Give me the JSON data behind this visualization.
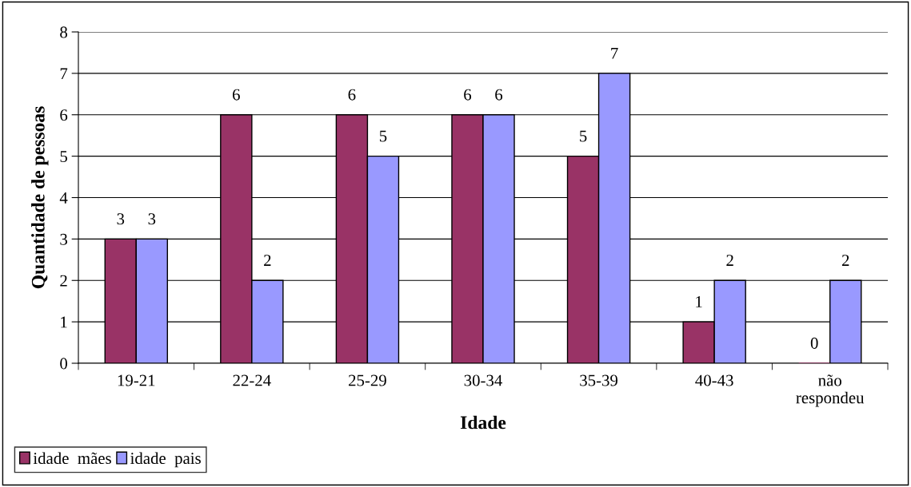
{
  "chart_data": {
    "type": "bar",
    "xlabel": "Idade",
    "ylabel": "Quantidade de pessoas",
    "categories": [
      "19-21",
      "22-24",
      "25-29",
      "30-34",
      "35-39",
      "40-43",
      "não\nrespondeu"
    ],
    "series": [
      {
        "name": "idade  mães",
        "color": "#993366",
        "values": [
          3,
          6,
          6,
          6,
          5,
          1,
          0
        ]
      },
      {
        "name": "idade  pais",
        "color": "#9999ff",
        "values": [
          3,
          2,
          5,
          6,
          7,
          2,
          2
        ]
      }
    ],
    "ylim": [
      0,
      8
    ],
    "yticks": [
      0,
      1,
      2,
      3,
      4,
      5,
      6,
      7,
      8
    ],
    "grid": "y",
    "legend": "bottom left",
    "data_labels": true
  }
}
